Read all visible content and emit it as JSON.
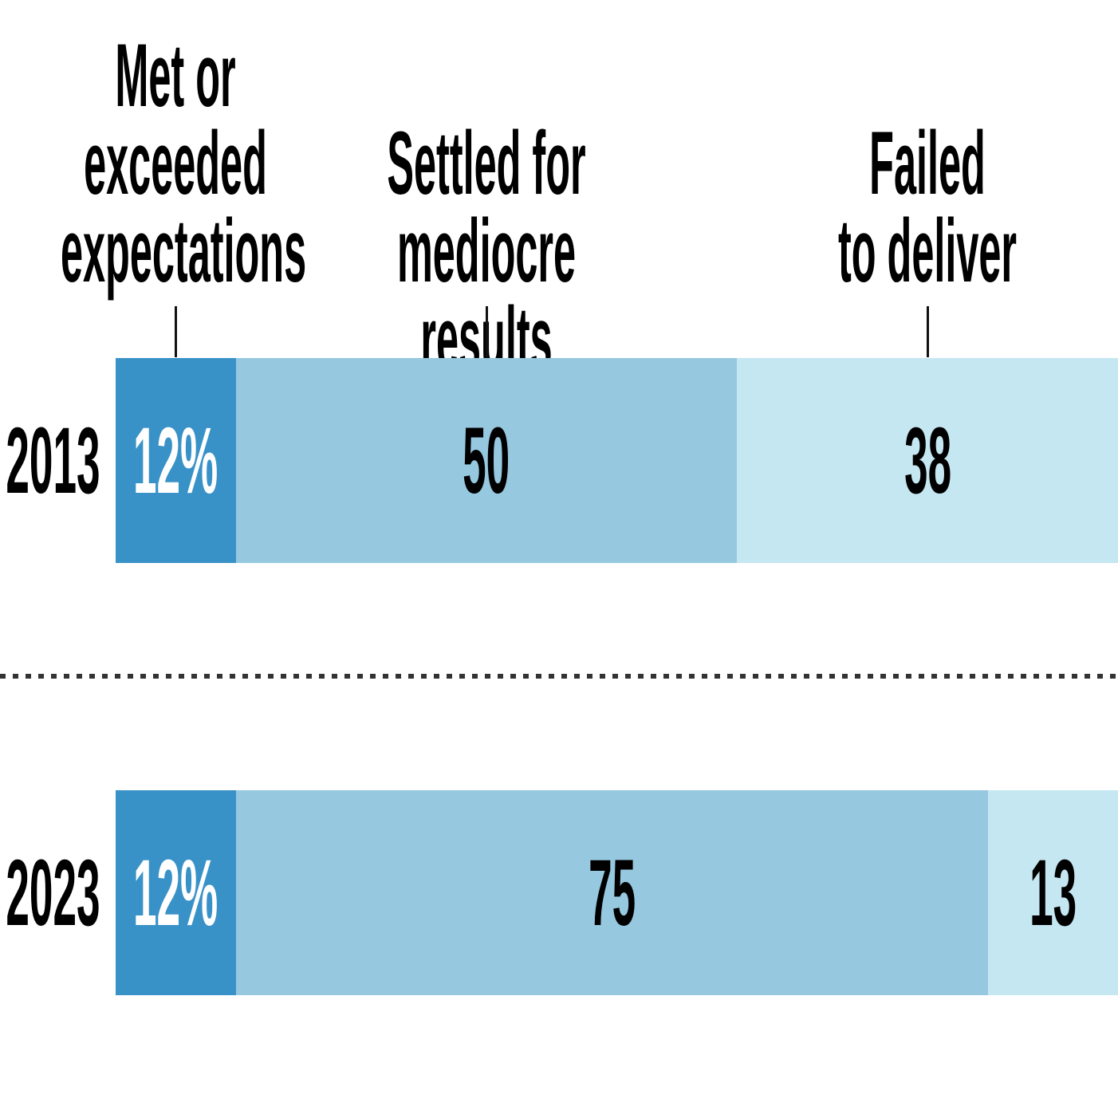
{
  "chart_data": {
    "type": "bar",
    "stacked": true,
    "orientation": "horizontal",
    "unit": "percent",
    "title": "",
    "axis": {
      "min": 0,
      "max": 100,
      "axes_visible": false,
      "grid": false
    },
    "legend_position": "top-column-headers-with-leader-ticks",
    "column_headers": [
      {
        "id": "met-exceeded",
        "text": "Met or\nexceeded\nexpectations"
      },
      {
        "id": "settled-mediocre",
        "text": "Settled for\nmediocre results"
      },
      {
        "id": "failed-deliver",
        "text": "Failed\nto deliver"
      }
    ],
    "series": [
      {
        "id": "met-exceeded",
        "name": "Met or exceeded expectations",
        "color": "#3992c7",
        "text_color": "#ffffff"
      },
      {
        "id": "settled-mediocre",
        "name": "Settled for mediocre results",
        "color": "#96c8e0",
        "text_color": "#000000"
      },
      {
        "id": "failed-deliver",
        "name": "Failed to deliver",
        "color": "#c5e7f2",
        "text_color": "#000000"
      }
    ],
    "rows": [
      {
        "category": "2013",
        "segments": [
          {
            "value": 12,
            "label": "12%"
          },
          {
            "value": 50,
            "label": "50"
          },
          {
            "value": 38,
            "label": "38"
          }
        ]
      },
      {
        "category": "2023",
        "segments": [
          {
            "value": 12,
            "label": "12%"
          },
          {
            "value": 75,
            "label": "75"
          },
          {
            "value": 13,
            "label": "13"
          }
        ]
      }
    ]
  },
  "styles": {
    "background": "#ffffff",
    "text_color": "#000000",
    "divider_color": "#333333",
    "tick_color": "#111111"
  }
}
